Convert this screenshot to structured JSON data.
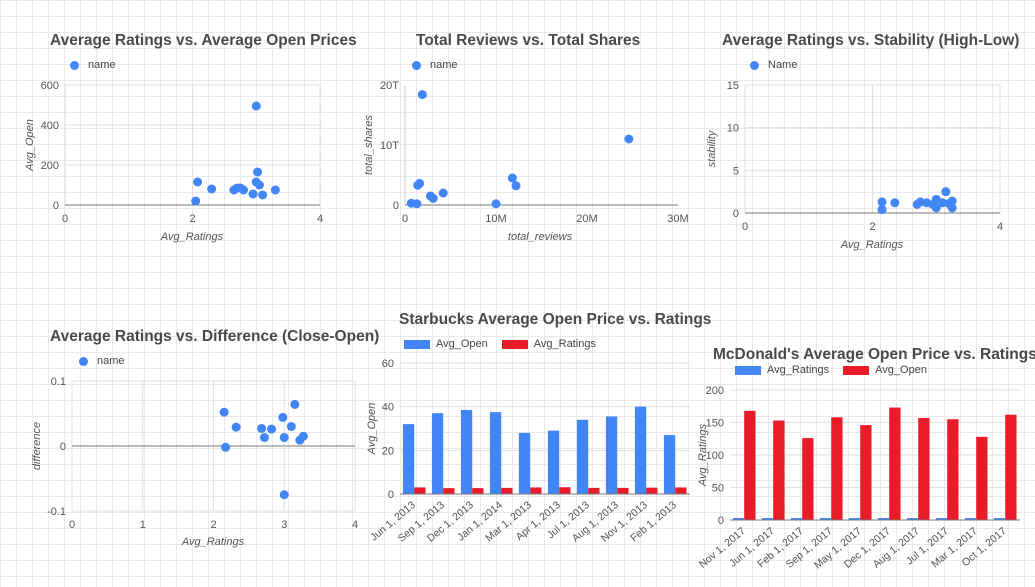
{
  "colors": {
    "blue": "#4285f4",
    "red": "#ea1b29",
    "axis": "#9e9e9e",
    "grid": "#e0e0e0",
    "text": "#555"
  },
  "chart_data": [
    {
      "id": "c1",
      "type": "scatter",
      "title": "Average Ratings vs. Average Open Prices",
      "legend": [
        "name"
      ],
      "xlabel": "Avg_Ratings",
      "ylabel": "Avg_Open",
      "xlim": [
        0,
        4
      ],
      "ylim": [
        0,
        600
      ],
      "xticks": [
        "0",
        "2",
        "4"
      ],
      "yticks": [
        "0",
        "200",
        "400",
        "600"
      ],
      "x": [
        2.05,
        2.08,
        2.3,
        2.65,
        2.7,
        2.75,
        2.8,
        2.95,
        3.0,
        3.02,
        3.05,
        3.1,
        3.3,
        3.0
      ],
      "y": [
        20,
        115,
        80,
        75,
        85,
        85,
        75,
        55,
        115,
        165,
        100,
        50,
        75,
        495
      ]
    },
    {
      "id": "c2",
      "type": "scatter",
      "title": "Total Reviews vs. Total Shares",
      "legend": [
        "name"
      ],
      "xlabel": "total_reviews",
      "ylabel": "total_shares",
      "xlim": [
        0,
        30000000
      ],
      "ylim": [
        0,
        20000000000000
      ],
      "xticks": [
        "0",
        "10M",
        "20M",
        "30M"
      ],
      "yticks": [
        "0",
        "10T",
        "20T"
      ],
      "x": [
        700000,
        1300000,
        1400000,
        1600000,
        1900000,
        2800000,
        3100000,
        4200000,
        10000000,
        11800000,
        12200000,
        24600000
      ],
      "y": [
        300000000000,
        200000000000,
        3300000000000,
        3600000000000,
        18400000000000,
        1500000000000,
        1100000000000,
        2000000000000,
        200000000000,
        4500000000000,
        3200000000000,
        11000000000000
      ],
      "grid": "none"
    },
    {
      "id": "c3",
      "type": "scatter",
      "title": "Average Ratings vs. Stability (High-Low)",
      "legend": [
        "Name"
      ],
      "xlabel": "Avg_Ratings",
      "ylabel": "stability",
      "xlim": [
        0,
        4
      ],
      "ylim": [
        0,
        15
      ],
      "xticks": [
        "0",
        "2",
        "4"
      ],
      "yticks": [
        "0",
        "5",
        "10",
        "15"
      ],
      "x": [
        2.15,
        2.15,
        2.35,
        2.7,
        2.75,
        2.85,
        2.95,
        3.0,
        3.0,
        3.1,
        3.15,
        3.2,
        3.25,
        3.25
      ],
      "y": [
        0.4,
        1.3,
        1.2,
        1.0,
        1.3,
        1.2,
        1.0,
        0.6,
        1.6,
        1.2,
        2.5,
        1.1,
        0.6,
        1.4
      ]
    },
    {
      "id": "c4",
      "type": "scatter",
      "title": "Average Ratings vs. Difference (Close-Open)",
      "legend": [
        "name"
      ],
      "xlabel": "Avg_Ratings",
      "ylabel": "difference",
      "xlim": [
        0,
        4
      ],
      "ylim": [
        -0.1,
        0.1
      ],
      "xticks": [
        "0",
        "1",
        "2",
        "3",
        "4"
      ],
      "yticks": [
        "-0.1",
        "0",
        "0.1"
      ],
      "x": [
        2.15,
        2.17,
        2.32,
        2.68,
        2.72,
        2.82,
        2.98,
        3.0,
        3.0,
        3.1,
        3.15,
        3.22,
        3.27
      ],
      "y": [
        0.052,
        -0.002,
        0.029,
        0.027,
        0.013,
        0.026,
        0.044,
        0.013,
        -0.075,
        0.03,
        0.064,
        0.009,
        0.015
      ]
    },
    {
      "id": "c5",
      "type": "bar",
      "title": "Starbucks Average Open Price vs. Ratings",
      "categories": [
        "Jun 1, 2013",
        "Sep 1, 2013",
        "Dec 1, 2013",
        "Jan 1, 2014",
        "Mar 1, 2013",
        "Apr 1, 2013",
        "Jul 1, 2013",
        "Aug 1, 2013",
        "Nov 1, 2013",
        "Feb 1, 2013"
      ],
      "series": [
        {
          "name": "Avg_Open",
          "color": "#4285f4",
          "values": [
            32,
            37,
            38.5,
            37.5,
            28,
            29,
            34,
            35.5,
            40,
            27
          ]
        },
        {
          "name": "Avg_Ratings",
          "color": "#ea1b29",
          "values": [
            3,
            2.7,
            2.7,
            2.8,
            3,
            3.1,
            2.8,
            2.8,
            2.9,
            3
          ]
        }
      ],
      "ylabel": "Avg_Open",
      "ylim": [
        0,
        60
      ],
      "yticks": [
        "0",
        "20",
        "40",
        "60"
      ]
    },
    {
      "id": "c6",
      "type": "bar",
      "title": "McDonald's Average Open Price vs. Ratings",
      "categories": [
        "Nov 1, 2017",
        "Jun 1, 2017",
        "Feb 1, 2017",
        "Sep 1, 2017",
        "May 1, 2017",
        "Dec 1, 2017",
        "Aug 1, 2017",
        "Jul 1, 2017",
        "Mar 1, 2017",
        "Oct 1, 2017"
      ],
      "series": [
        {
          "name": "Avg_Ratings",
          "color": "#4285f4",
          "values": [
            3,
            3,
            3,
            3,
            3,
            3,
            3,
            3,
            3,
            3
          ]
        },
        {
          "name": "Avg_Open",
          "color": "#ea1b29",
          "values": [
            168,
            153,
            126,
            158,
            146,
            173,
            157,
            155,
            128,
            162
          ]
        }
      ],
      "ylabel": "Avg_Ratings",
      "ylim": [
        0,
        200
      ],
      "yticks": [
        "0",
        "50",
        "100",
        "150",
        "200"
      ]
    }
  ]
}
